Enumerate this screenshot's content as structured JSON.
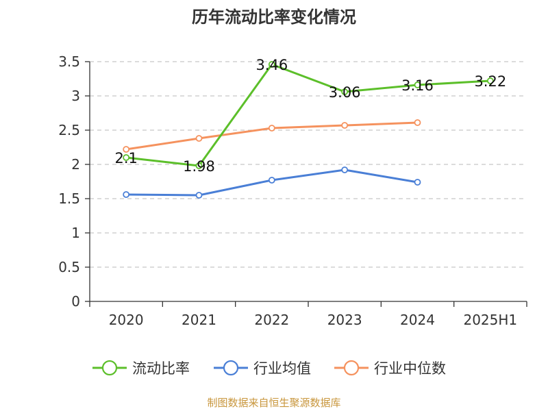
{
  "chart_data": {
    "type": "line",
    "title": "历年流动比率变化情况",
    "categories": [
      "2020",
      "2021",
      "2022",
      "2023",
      "2024",
      "2025H1"
    ],
    "ylim": [
      0,
      3.5
    ],
    "yticks": [
      "0",
      "0.5",
      "1",
      "1.5",
      "2",
      "2.5",
      "3",
      "3.5"
    ],
    "grid": true,
    "legend_position": "bottom",
    "series": [
      {
        "name": "流动比率",
        "color": "#5cbf2a",
        "values": [
          2.1,
          1.98,
          3.46,
          3.06,
          3.16,
          3.22
        ],
        "labels": [
          "2.1",
          "1.98",
          "3.46",
          "3.06",
          "3.16",
          "3.22"
        ]
      },
      {
        "name": "行业均值",
        "color": "#4a7fd6",
        "values": [
          1.56,
          1.55,
          1.77,
          1.92,
          1.74,
          null
        ]
      },
      {
        "name": "行业中位数",
        "color": "#f5925e",
        "values": [
          2.22,
          2.38,
          2.53,
          2.57,
          2.61,
          null
        ]
      }
    ]
  },
  "footer": "制图数据来自恒生聚源数据库"
}
